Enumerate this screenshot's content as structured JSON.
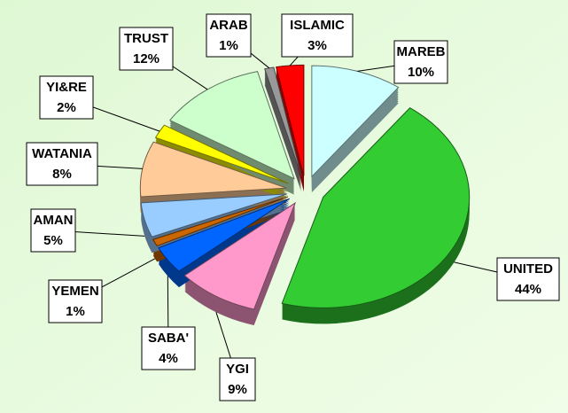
{
  "chart_data": {
    "type": "pie",
    "categories": [
      "MAREB",
      "UNITED",
      "YGI",
      "SABA'",
      "YEMEN",
      "AMAN",
      "WATANIA",
      "YI&RE",
      "TRUST",
      "ARAB",
      "ISLAMIC"
    ],
    "values": [
      10,
      44,
      9,
      4,
      1,
      5,
      8,
      2,
      12,
      1,
      3
    ],
    "value_labels": [
      "10%",
      "44%",
      "9%",
      "4%",
      "1%",
      "5%",
      "8%",
      "2%",
      "12%",
      "1%",
      "3%"
    ],
    "colors": [
      "#ccffff",
      "#33cc33",
      "#ff99cc",
      "#0066ff",
      "#cc6600",
      "#99ccff",
      "#ffcc99",
      "#ffff00",
      "#ccffcc",
      "#999999",
      "#ff0000"
    ]
  }
}
